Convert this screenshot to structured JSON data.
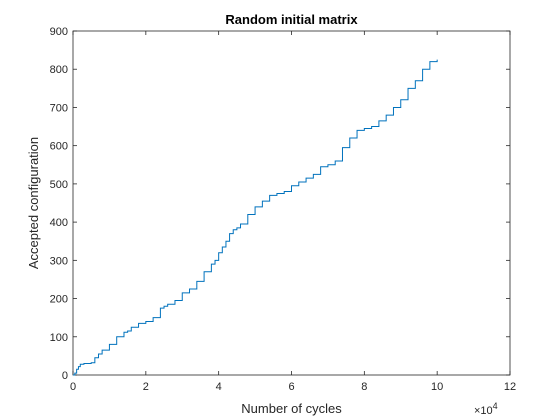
{
  "chart_data": {
    "type": "line",
    "title": "Random initial matrix",
    "xlabel": "Number of cycles",
    "ylabel": "Accepted configuration",
    "x_exponent_label": "×10",
    "x_exponent_power": "4",
    "xlim": [
      0,
      12
    ],
    "ylim": [
      0,
      900
    ],
    "xticks": [
      0,
      2,
      4,
      6,
      8,
      10,
      12
    ],
    "yticks": [
      0,
      100,
      200,
      300,
      400,
      500,
      600,
      700,
      800,
      900
    ],
    "xtick_labels": [
      "0",
      "2",
      "4",
      "6",
      "8",
      "10",
      "12"
    ],
    "ytick_labels": [
      "0",
      "100",
      "200",
      "300",
      "400",
      "500",
      "600",
      "700",
      "800",
      "900"
    ],
    "grid": false,
    "line_color": "#0072BD",
    "series": [
      {
        "x": [
          0,
          0.05,
          0.1,
          0.15,
          0.2,
          0.3,
          0.5,
          0.6,
          0.7,
          0.8,
          1.0,
          1.2,
          1.4,
          1.5,
          1.6,
          1.8,
          2.0,
          2.2,
          2.4,
          2.5,
          2.6,
          2.8,
          3.0,
          3.2,
          3.4,
          3.6,
          3.8,
          3.9,
          4.0,
          4.1,
          4.2,
          4.3,
          4.4,
          4.5,
          4.6,
          4.8,
          5.0,
          5.2,
          5.4,
          5.6,
          5.8,
          6.0,
          6.2,
          6.4,
          6.6,
          6.8,
          7.0,
          7.2,
          7.4,
          7.6,
          7.8,
          8.0,
          8.2,
          8.4,
          8.6,
          8.8,
          9.0,
          9.2,
          9.4,
          9.6,
          9.8,
          10.0
        ],
        "y": [
          0,
          5,
          15,
          22,
          28,
          30,
          32,
          45,
          55,
          65,
          80,
          100,
          112,
          115,
          125,
          135,
          140,
          150,
          175,
          180,
          185,
          195,
          215,
          225,
          245,
          270,
          290,
          300,
          320,
          335,
          350,
          370,
          380,
          385,
          395,
          420,
          440,
          455,
          470,
          475,
          480,
          495,
          505,
          515,
          525,
          545,
          550,
          560,
          595,
          620,
          640,
          645,
          650,
          665,
          680,
          700,
          720,
          750,
          770,
          800,
          820,
          825
        ]
      }
    ]
  }
}
